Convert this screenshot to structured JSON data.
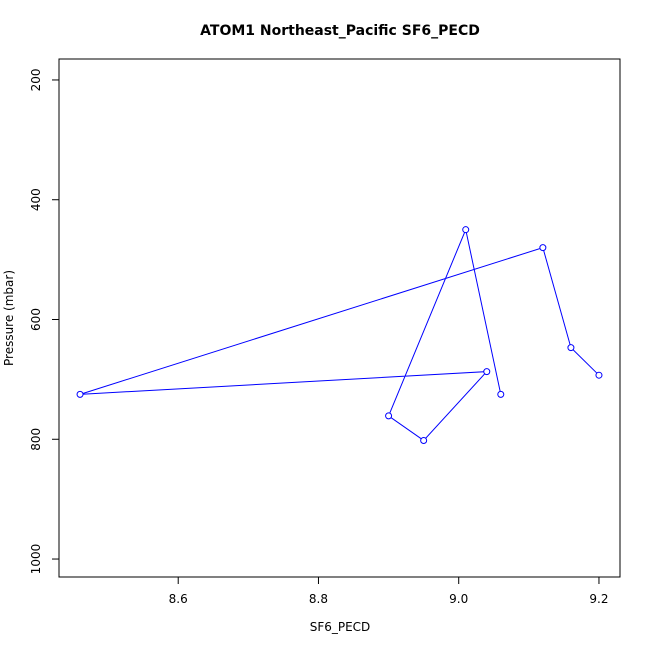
{
  "chart_data": {
    "type": "line",
    "title": "ATOM1 Northeast_Pacific SF6_PECD",
    "xlabel": "SF6_PECD",
    "ylabel": "Pressure (mbar)",
    "xlim": [
      8.43,
      9.23
    ],
    "ylim": [
      1030,
      165
    ],
    "y_reversed": true,
    "x_ticks": [
      "8.6",
      "8.8",
      "9.0",
      "9.2"
    ],
    "x_tick_values": [
      8.6,
      8.8,
      9.0,
      9.2
    ],
    "y_ticks": [
      "200",
      "400",
      "600",
      "800",
      "1000"
    ],
    "y_tick_values": [
      200,
      400,
      600,
      800,
      1000
    ],
    "grid": false,
    "series": [
      {
        "color": "#0000ff",
        "marker": "open-circle",
        "points": [
          {
            "x": 9.2,
            "y": 693
          },
          {
            "x": 9.16,
            "y": 647
          },
          {
            "x": 9.12,
            "y": 480
          },
          {
            "x": 8.46,
            "y": 725
          },
          {
            "x": 9.04,
            "y": 687
          },
          {
            "x": 8.95,
            "y": 802
          },
          {
            "x": 8.9,
            "y": 761
          },
          {
            "x": 9.01,
            "y": 450
          },
          {
            "x": 9.06,
            "y": 725
          }
        ]
      }
    ]
  }
}
